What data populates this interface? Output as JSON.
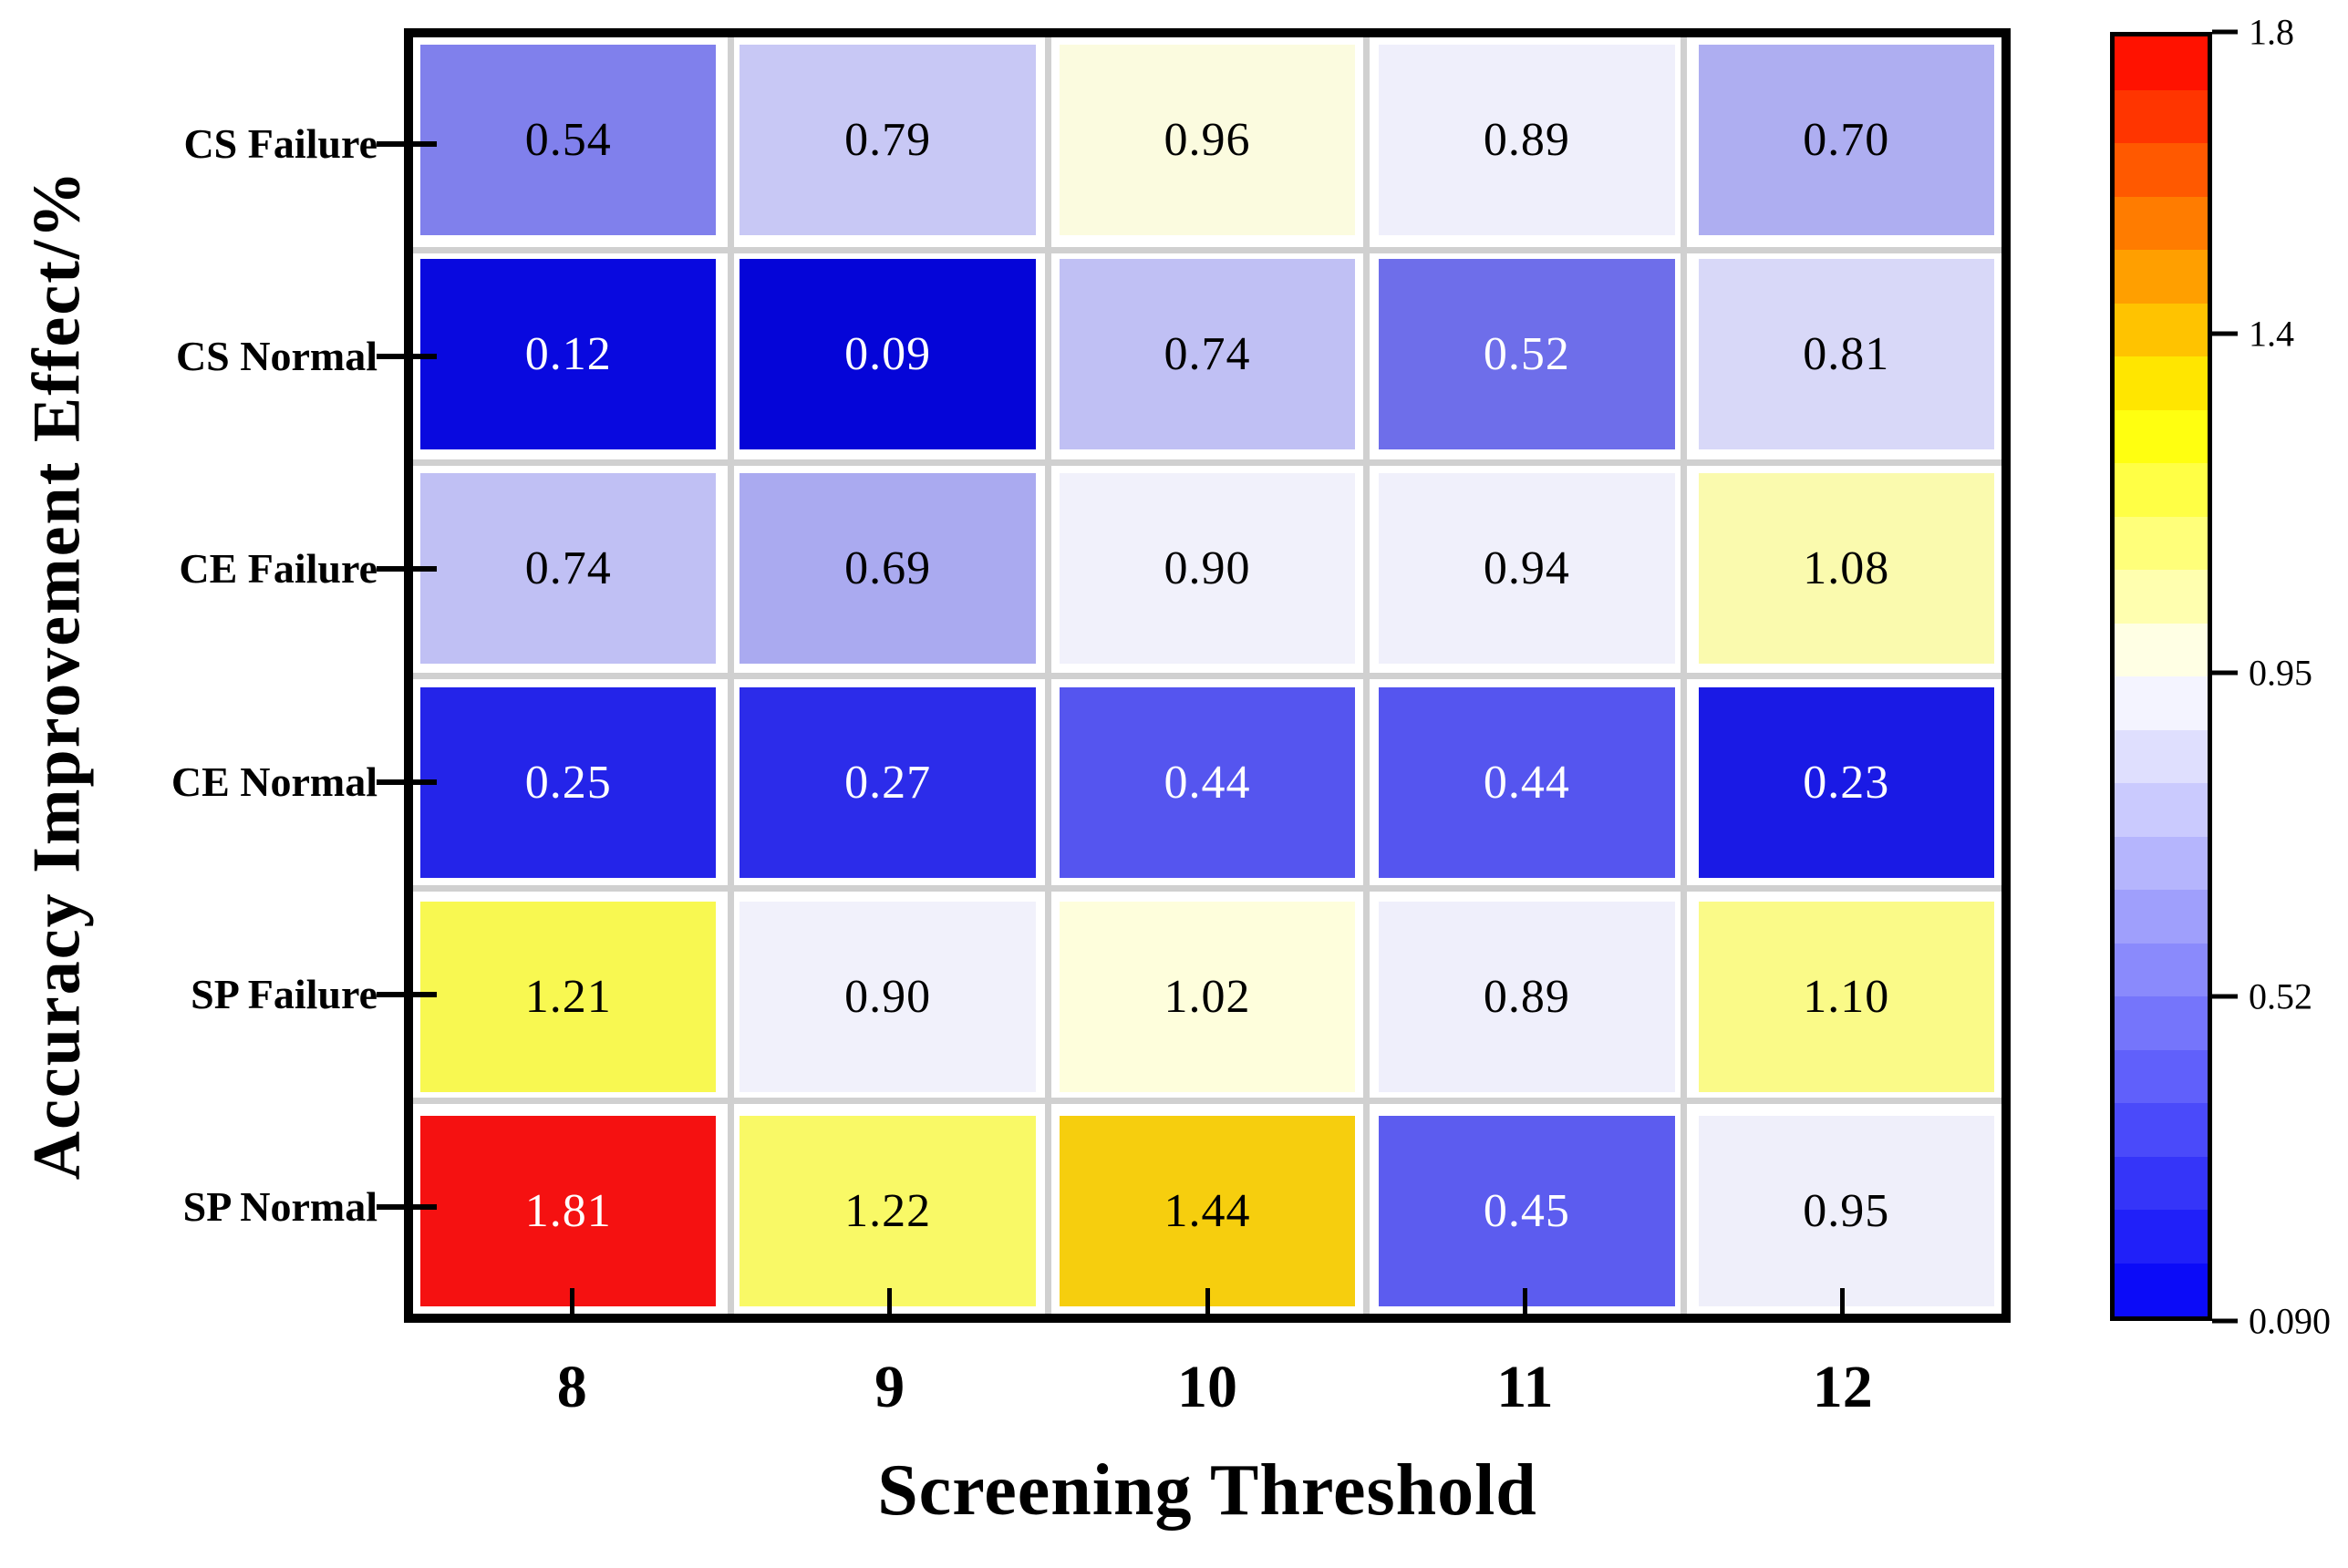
{
  "chart_data": {
    "type": "heatmap",
    "title": "",
    "xlabel": "Screening Threshold",
    "ylabel": "Accuracy Improvement Effect/%",
    "x_categories": [
      "8",
      "9",
      "10",
      "11",
      "12"
    ],
    "y_categories": [
      "CS Failure",
      "CS Normal",
      "CE Failure",
      "CE Normal",
      "SP Failure",
      "SP Normal"
    ],
    "values": [
      [
        0.54,
        0.79,
        0.96,
        0.89,
        0.7
      ],
      [
        0.12,
        0.09,
        0.74,
        0.52,
        0.81
      ],
      [
        0.74,
        0.69,
        0.9,
        0.94,
        1.08
      ],
      [
        0.25,
        0.27,
        0.44,
        0.44,
        0.23
      ],
      [
        1.21,
        0.9,
        1.02,
        0.89,
        1.1
      ],
      [
        1.81,
        1.22,
        1.44,
        0.45,
        0.95
      ]
    ],
    "cell_colors": [
      [
        "#8080EC",
        "#C8C8F5",
        "#FBFBDF",
        "#EFEFFB",
        "#AEAEF1"
      ],
      [
        "#0909DF",
        "#0505D8",
        "#C0C0F4",
        "#6E6EEA",
        "#D8D8F8"
      ],
      [
        "#C0C0F4",
        "#AAAAF0",
        "#F1F1FB",
        "#F0F0FB",
        "#FAFAAE"
      ],
      [
        "#2424E9",
        "#2C2CEA",
        "#5555EF",
        "#5555EF",
        "#1A1AE5"
      ],
      [
        "#F8F851",
        "#F1F1FB",
        "#FEFEDC",
        "#EFEFFB",
        "#FAFA88"
      ],
      [
        "#F51111",
        "#F9F966",
        "#F6CE0E",
        "#5C5CEF",
        "#EFEFFA"
      ]
    ],
    "value_text_decimals": 2,
    "grid": true,
    "grid_line_color": "#D0D0D0",
    "colorbar": {
      "position": "right",
      "vmin": 0.09,
      "vmax": 1.8,
      "bands": 24,
      "tick_labels": [
        "1.8",
        "1.4",
        "0.95",
        "0.52",
        "0.090"
      ],
      "tick_values": [
        1.8,
        1.4,
        0.95,
        0.52,
        0.09
      ],
      "colormap": "blue-white-yellow-red"
    },
    "colors": {
      "axis_border": "#000000",
      "background": "#FFFFFF",
      "blue_end": "#0000FA",
      "white_mid": "#FFFFFF",
      "yellow_point": "#FFFF00",
      "red_end": "#FF0000"
    }
  }
}
